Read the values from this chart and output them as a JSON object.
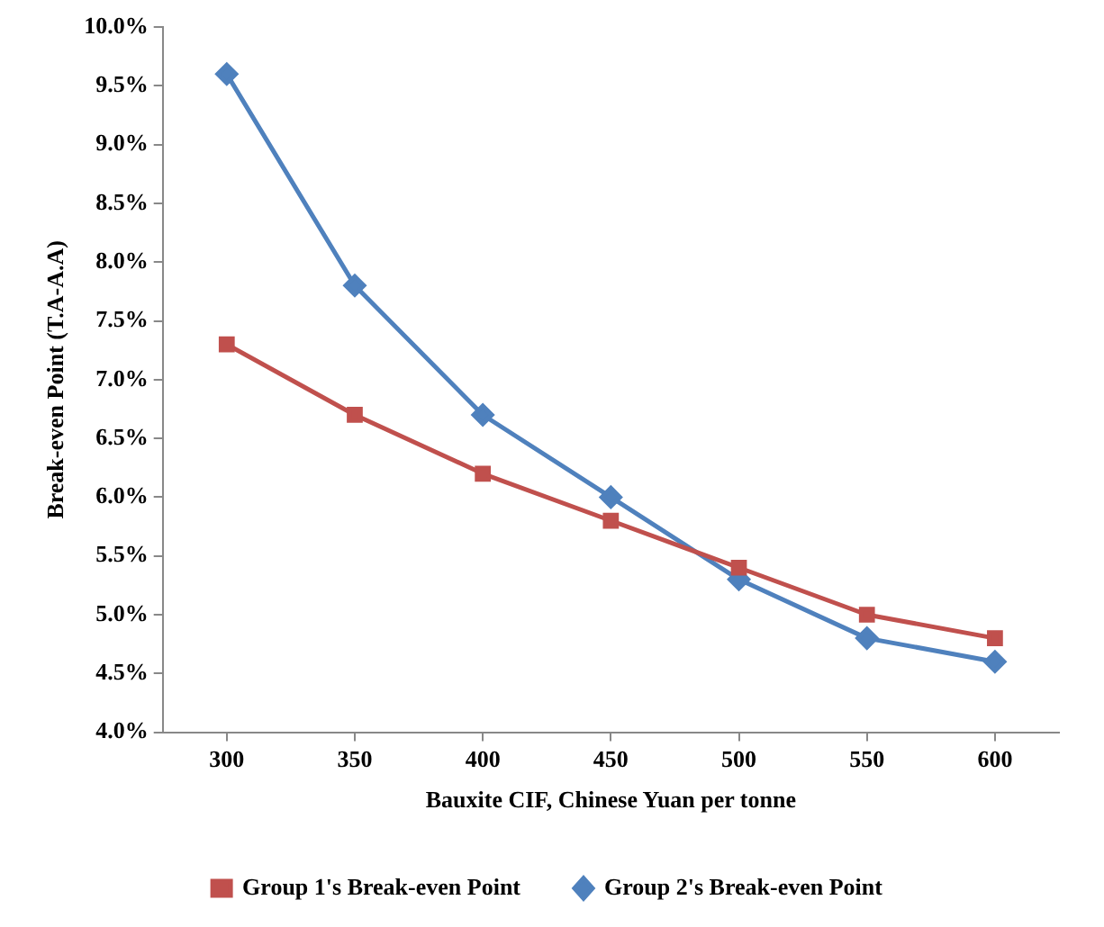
{
  "chart_data": {
    "type": "line",
    "xlabel": "Bauxite CIF, Chinese Yuan per tonne",
    "ylabel": "Break-even Point (T.A-A.A)",
    "categories": [
      "300",
      "350",
      "400",
      "450",
      "500",
      "550",
      "600"
    ],
    "series": [
      {
        "name": "Group 1's Break-even Point",
        "color": "#c0504d",
        "marker": "square",
        "values": [
          7.3,
          6.7,
          6.2,
          5.8,
          5.4,
          5.0,
          4.8
        ]
      },
      {
        "name": "Group 2's Break-even Point",
        "color": "#4f81bd",
        "marker": "diamond",
        "values": [
          9.6,
          7.8,
          6.7,
          6.0,
          5.3,
          4.8,
          4.6
        ]
      }
    ],
    "ylim": [
      4.0,
      10.0
    ],
    "yticks": [
      {
        "value": 4.0,
        "label": "4.0%"
      },
      {
        "value": 4.5,
        "label": "4.5%"
      },
      {
        "value": 5.0,
        "label": "5.0%"
      },
      {
        "value": 5.5,
        "label": "5.5%"
      },
      {
        "value": 6.0,
        "label": "6.0%"
      },
      {
        "value": 6.5,
        "label": "6.5%"
      },
      {
        "value": 7.0,
        "label": "7.0%"
      },
      {
        "value": 7.5,
        "label": "7.5%"
      },
      {
        "value": 8.0,
        "label": "8.0%"
      },
      {
        "value": 8.5,
        "label": "8.5%"
      },
      {
        "value": 9.0,
        "label": "9.0%"
      },
      {
        "value": 9.5,
        "label": "9.5%"
      },
      {
        "value": 10.0,
        "label": "10.0%"
      }
    ],
    "grid": false,
    "legend": "bottom",
    "line_style": "solid"
  }
}
